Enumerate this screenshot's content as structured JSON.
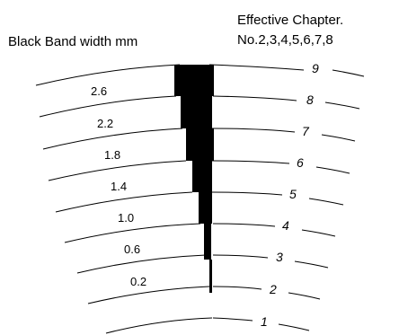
{
  "header": {
    "left_title": "Black Band width mm",
    "right_title_line1": "Effective Chapter.",
    "right_title_line2": "No.2,3,4,5,6,7,8"
  },
  "width_labels": [
    "2.6",
    "2.2",
    "1.8",
    "1.4",
    "1.0",
    "0.6",
    "0.2"
  ],
  "chapter_numbers": [
    "9",
    "8",
    "7",
    "6",
    "5",
    "4",
    "3",
    "2",
    "1"
  ],
  "colors": {
    "ink": "#000000",
    "background": "#ffffff"
  }
}
